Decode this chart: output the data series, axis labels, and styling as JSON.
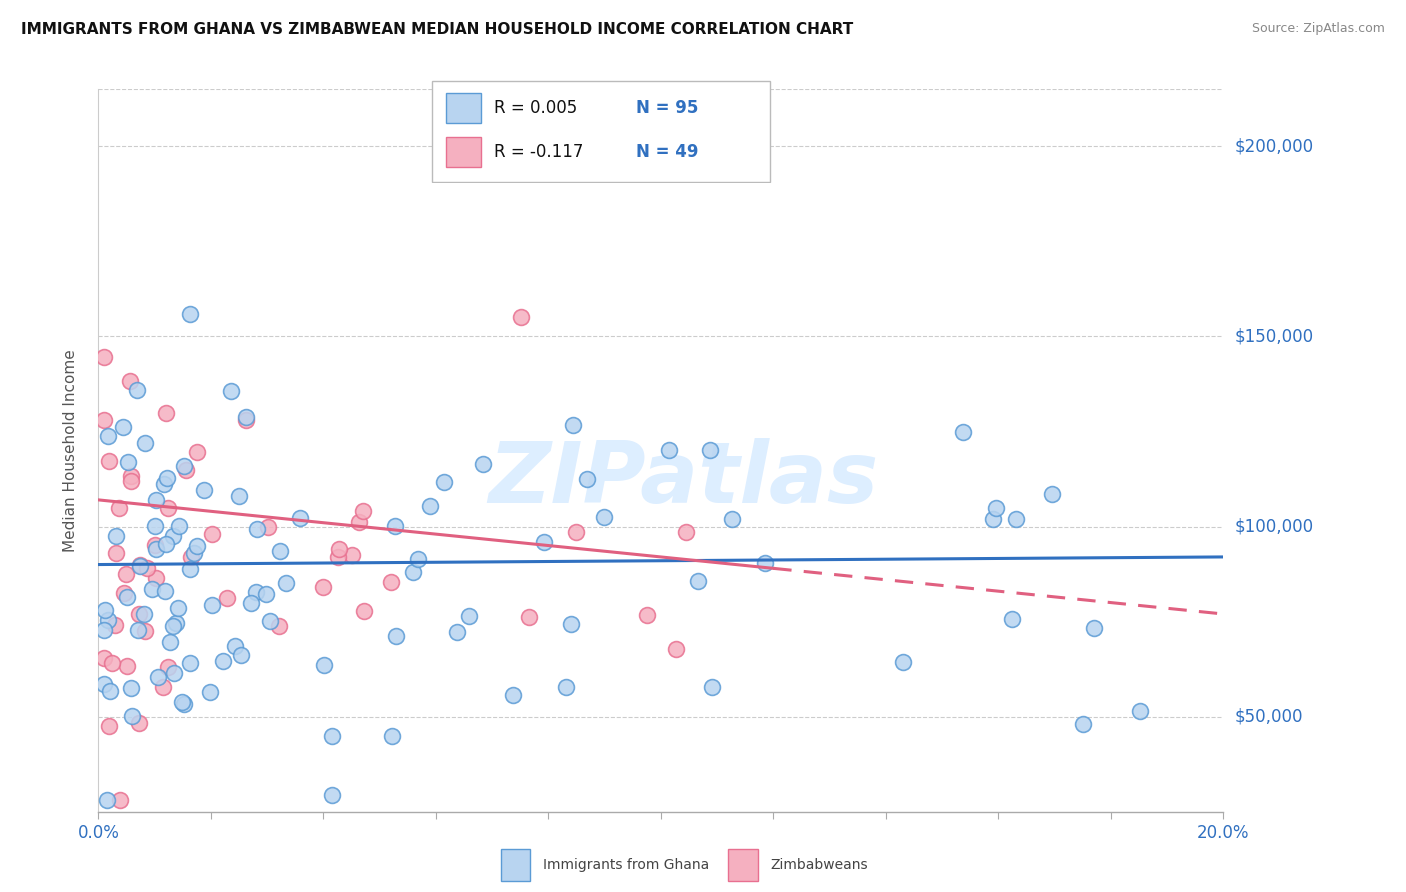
{
  "title": "IMMIGRANTS FROM GHANA VS ZIMBABWEAN MEDIAN HOUSEHOLD INCOME CORRELATION CHART",
  "source": "Source: ZipAtlas.com",
  "ylabel": "Median Household Income",
  "yticks": [
    50000,
    100000,
    150000,
    200000
  ],
  "ytick_labels": [
    "$50,000",
    "$100,000",
    "$150,000",
    "$200,000"
  ],
  "xlim": [
    0.0,
    0.2
  ],
  "ylim": [
    25000,
    215000
  ],
  "ghana_color": "#b8d4f0",
  "zimbabwe_color": "#f5b0c0",
  "ghana_edge_color": "#5b9bd5",
  "zimbabwe_edge_color": "#e87090",
  "ghana_line_color": "#3070c0",
  "zimbabwe_line_color": "#e06080",
  "watermark_color": "#ddeeff",
  "legend_r1": "R = 0.005",
  "legend_n1": "N = 95",
  "legend_r2": "R = -0.117",
  "legend_n2": "N = 49",
  "bottom_label1": "Immigrants from Ghana",
  "bottom_label2": "Zimbabweans"
}
